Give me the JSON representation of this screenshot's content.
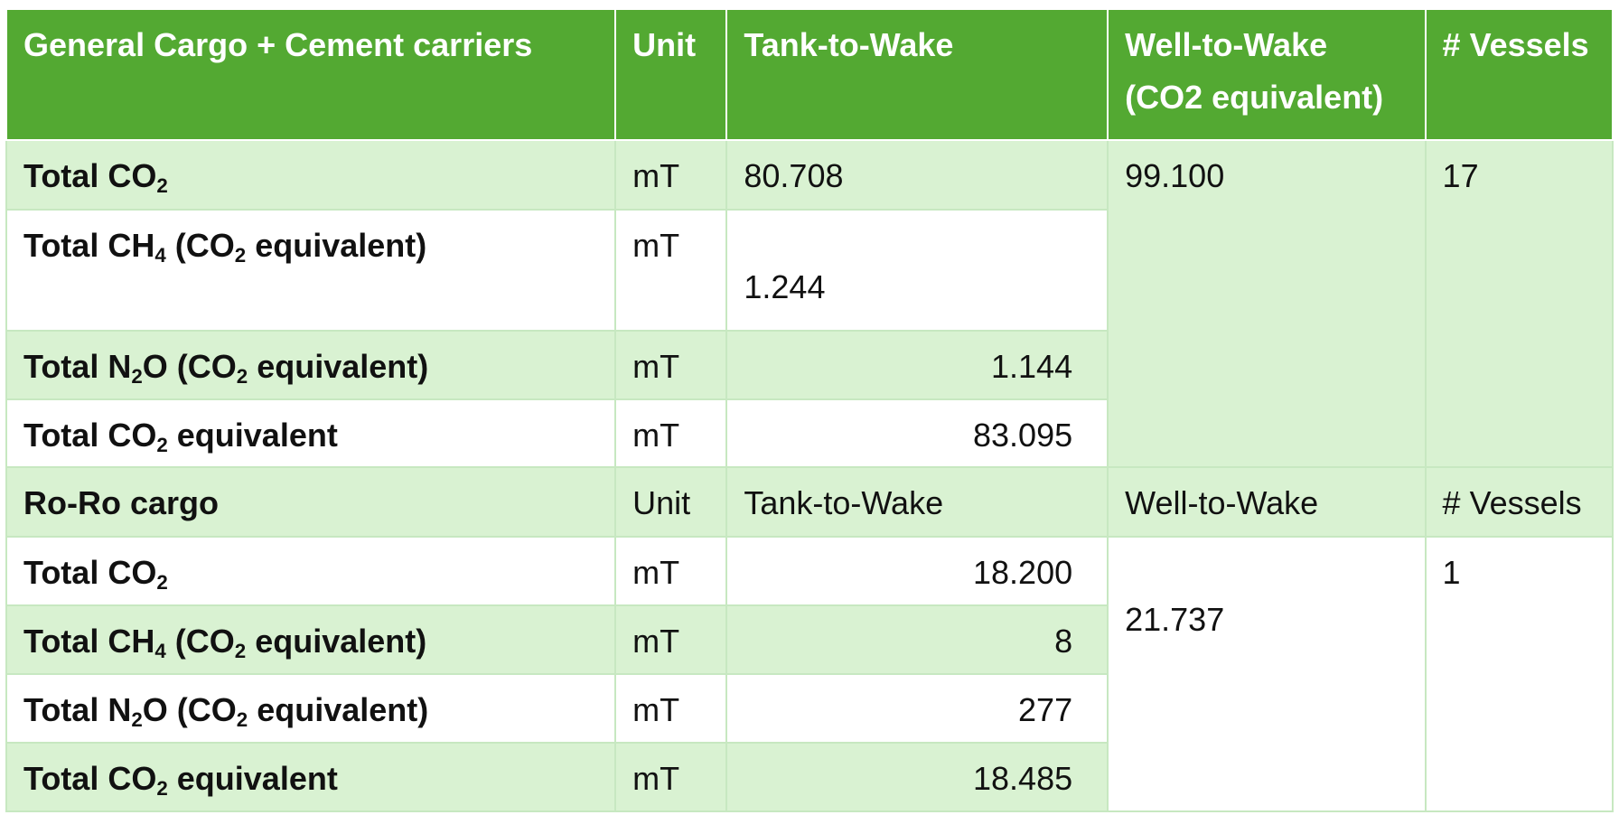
{
  "table": {
    "header": {
      "category": "General Cargo + Cement carriers",
      "unit": "Unit",
      "ttw": "Tank-to-Wake",
      "wtw": "Well-to-Wake (CO2 equivalent)",
      "vessels": "# Vessels"
    },
    "group1": {
      "rows": [
        {
          "unit": "mT",
          "ttw": "80.708"
        },
        {
          "unit": "mT",
          "ttw": "1.244"
        },
        {
          "unit": "mT",
          "ttw": "1.144"
        },
        {
          "unit": "mT",
          "ttw": "83.095"
        }
      ],
      "wtw": "99.100",
      "vessels": "17"
    },
    "subheader": {
      "category": "Ro-Ro cargo",
      "unit": "Unit",
      "ttw": "Tank-to-Wake",
      "wtw": "Well-to-Wake",
      "vessels": "# Vessels"
    },
    "group2": {
      "rows": [
        {
          "unit": "mT",
          "ttw": "18.200"
        },
        {
          "unit": "mT",
          "ttw": "8"
        },
        {
          "unit": "mT",
          "ttw": "277"
        },
        {
          "unit": "mT",
          "ttw": "18.485"
        }
      ],
      "wtw": "21.737",
      "vessels": "1"
    },
    "labels": {
      "total": "Total",
      "co": "CO",
      "ch": "CH",
      "n": "N",
      "o": "O",
      "sub2": "2",
      "sub4": "4",
      "equivalent": "equivalent",
      "open_paren": "(",
      "close_paren": ")"
    }
  }
}
